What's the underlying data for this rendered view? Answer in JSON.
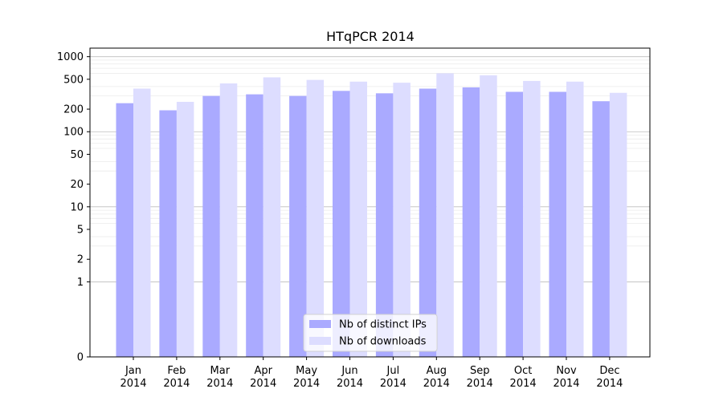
{
  "chart_data": {
    "type": "bar",
    "title": "HTqPCR 2014",
    "xlabel": "",
    "ylabel": "",
    "categories": [
      [
        "Jan",
        "2014"
      ],
      [
        "Feb",
        "2014"
      ],
      [
        "Mar",
        "2014"
      ],
      [
        "Apr",
        "2014"
      ],
      [
        "May",
        "2014"
      ],
      [
        "Jun",
        "2014"
      ],
      [
        "Jul",
        "2014"
      ],
      [
        "Aug",
        "2014"
      ],
      [
        "Sep",
        "2014"
      ],
      [
        "Oct",
        "2014"
      ],
      [
        "Nov",
        "2014"
      ],
      [
        "Dec",
        "2014"
      ]
    ],
    "series": [
      {
        "name": "Nb of distinct IPs",
        "color": "#aaaaff",
        "values": [
          240,
          193,
          300,
          315,
          300,
          350,
          325,
          375,
          390,
          340,
          340,
          255
        ]
      },
      {
        "name": "Nb of downloads",
        "color": "#ddddff",
        "values": [
          375,
          250,
          440,
          530,
          490,
          465,
          450,
          600,
          565,
          475,
          465,
          330
        ]
      }
    ],
    "y_scale": "symlog",
    "ylim": [
      0,
      1300
    ],
    "y_ticks": [
      0,
      1,
      2,
      5,
      10,
      20,
      50,
      100,
      200,
      500,
      1000
    ],
    "grid": "y-major-and-minor",
    "legend_position": "lower-center"
  }
}
